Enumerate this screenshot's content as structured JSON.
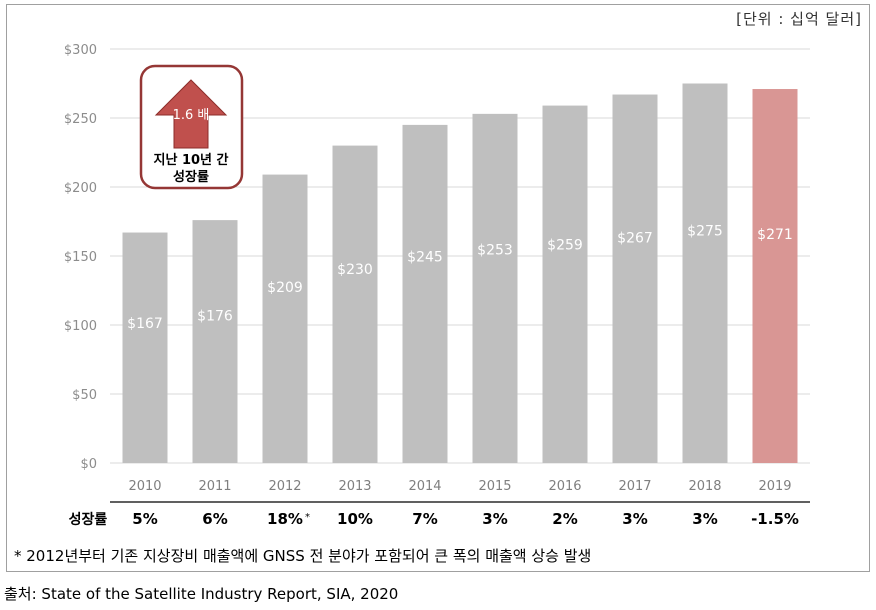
{
  "unit_label": "[단위 : 십억 달러]",
  "chart_data": {
    "type": "bar",
    "categories": [
      "2010",
      "2011",
      "2012",
      "2013",
      "2014",
      "2015",
      "2016",
      "2017",
      "2018",
      "2019"
    ],
    "values": [
      167,
      176,
      209,
      230,
      245,
      253,
      259,
      267,
      275,
      271
    ],
    "value_labels": [
      "$167",
      "$176",
      "$209",
      "$230",
      "$245",
      "$253",
      "$259",
      "$267",
      "$275",
      "$271"
    ],
    "ylim": [
      0,
      300
    ],
    "yticks": [
      0,
      50,
      100,
      150,
      200,
      250,
      300
    ],
    "ytick_labels": [
      "$0",
      "$50",
      "$100",
      "$150",
      "$200",
      "$250",
      "$300"
    ],
    "highlight_index": 9,
    "colors": {
      "bar": "#bfbfbf",
      "highlight": "#d99694",
      "arrow": "#c0504d",
      "callout_border": "#953735"
    },
    "grid": true,
    "title": "",
    "xlabel": "",
    "ylabel": ""
  },
  "callout": {
    "arrow_label": "1.6 배",
    "line1": "지난 10년 간",
    "line2": "성장률"
  },
  "growth_row": {
    "label": "성장률",
    "values": [
      "5%",
      "6%",
      "18%",
      "10%",
      "7%",
      "3%",
      "2%",
      "3%",
      "3%",
      "-1.5%"
    ],
    "asterisk": "*",
    "asterisk_index": 2
  },
  "footnote": "* 2012년부터 기존 지상장비 매출액에 GNSS 전 분야가 포함되어 큰 폭의 매출액 상승 발생",
  "source": "출처: State of the Satellite Industry Report, SIA, 2020"
}
